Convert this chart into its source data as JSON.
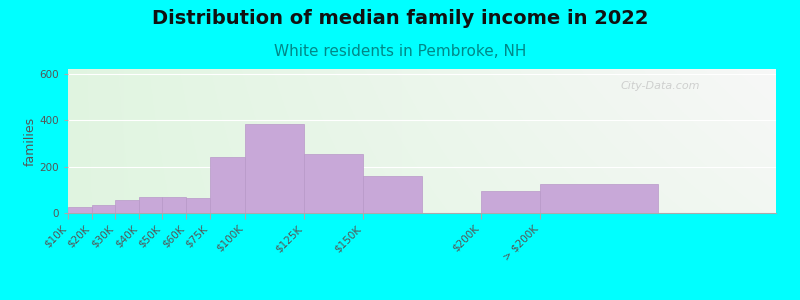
{
  "title": "Distribution of median family income in 2022",
  "subtitle": "White residents in Pembroke, NH",
  "ylabel": "families",
  "background_outer": "#00FFFF",
  "bar_color": "#c8a8d8",
  "bar_edge_color": "#b898c8",
  "categories": [
    "$10K",
    "$20K",
    "$30K",
    "$40K",
    "$50K",
    "$60K",
    "$75K",
    "$100K",
    "$125K",
    "$150K",
    "$200K",
    "> $200K"
  ],
  "values": [
    25,
    35,
    55,
    70,
    70,
    65,
    240,
    385,
    255,
    160,
    95,
    125
  ],
  "x_positions": [
    10,
    20,
    30,
    40,
    50,
    60,
    75,
    100,
    125,
    150,
    200,
    250
  ],
  "bar_widths": [
    10,
    10,
    10,
    10,
    10,
    10,
    15,
    25,
    25,
    25,
    25,
    50
  ],
  "ylim": [
    0,
    620
  ],
  "yticks": [
    0,
    200,
    400,
    600
  ],
  "title_fontsize": 14,
  "subtitle_fontsize": 11,
  "subtitle_color": "#008888",
  "watermark": "City-Data.com",
  "tick_label_fontsize": 7.5,
  "ylabel_fontsize": 9
}
